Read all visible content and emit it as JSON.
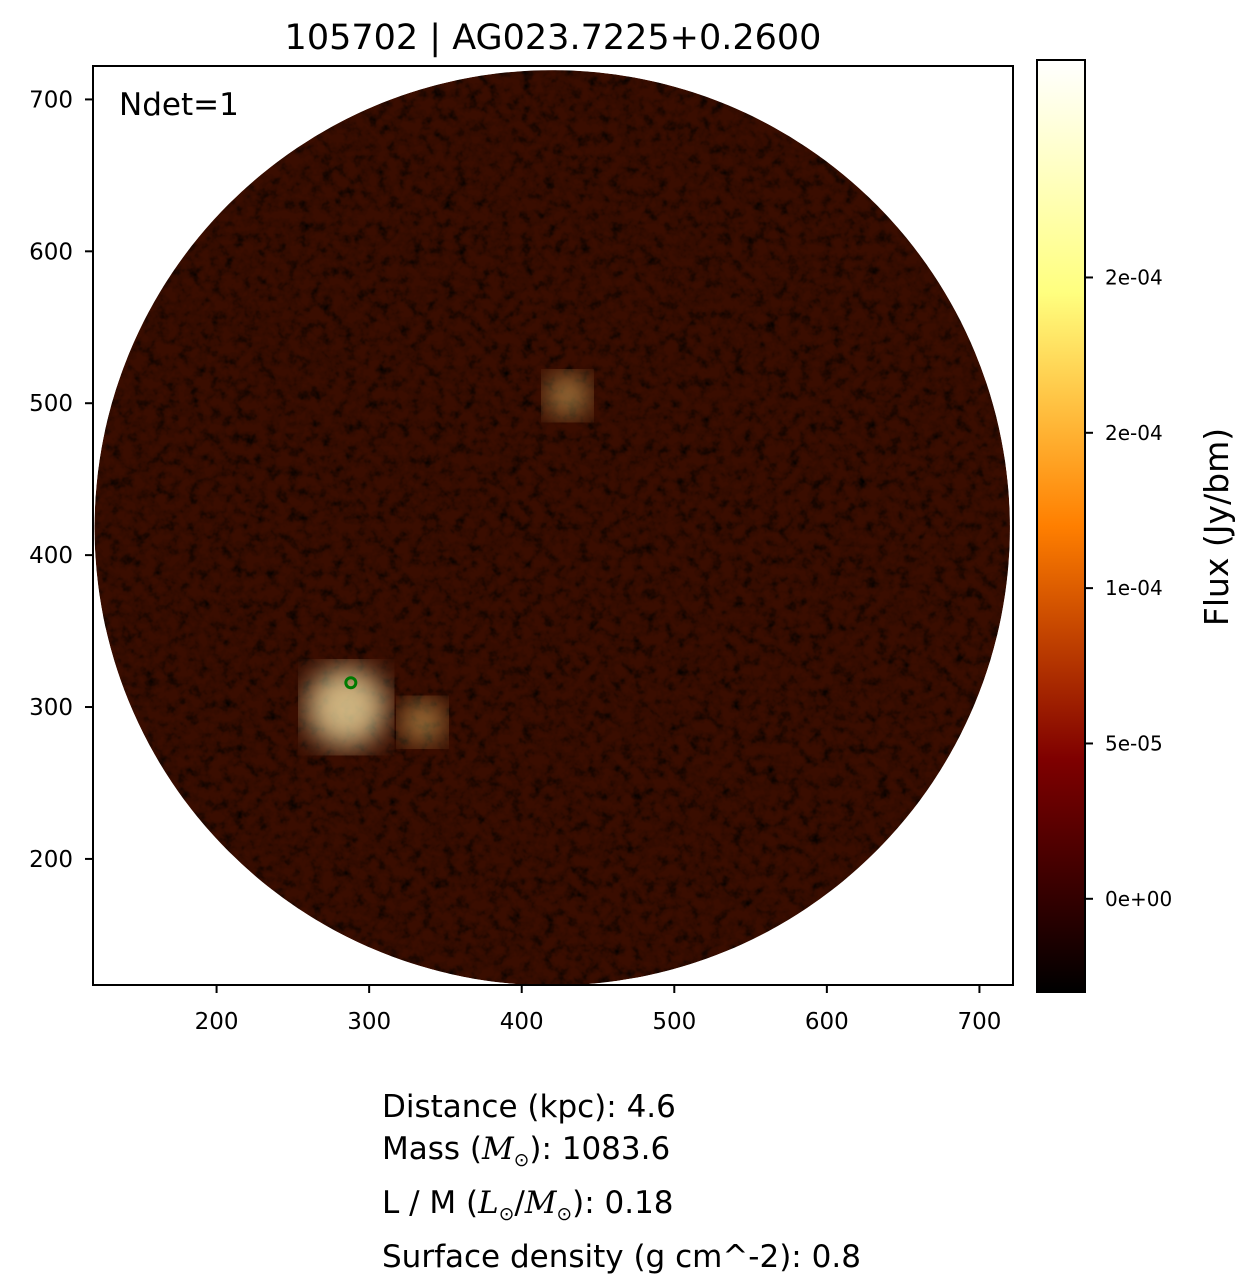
{
  "chart_data": {
    "type": "heatmap",
    "title": "105702 | AG023.7225+0.2600",
    "annotation": "Ndet=1",
    "xlabel": "",
    "ylabel": "",
    "xlim": [
      119,
      722
    ],
    "ylim": [
      117,
      722
    ],
    "x_ticks": [
      200,
      300,
      400,
      500,
      600,
      700
    ],
    "y_ticks": [
      200,
      300,
      400,
      500,
      600,
      700
    ],
    "x_tick_labels": [
      "200",
      "300",
      "400",
      "500",
      "600",
      "700"
    ],
    "y_tick_labels": [
      "200",
      "300",
      "400",
      "500",
      "600",
      "700"
    ],
    "field": {
      "shape": "circle",
      "center": [
        420,
        418
      ],
      "radius": 300,
      "outside_color": "#ffffff"
    },
    "detection_marker": {
      "x": 288,
      "y": 316,
      "color": "#007a00",
      "style": "ring"
    },
    "bright_regions": [
      {
        "x": 285,
        "y": 300,
        "note": "bright emission"
      },
      {
        "x": 430,
        "y": 505
      },
      {
        "x": 335,
        "y": 290
      }
    ],
    "colorbar": {
      "label": "Flux (Jy/bm)",
      "colormap": "afmhot",
      "range": [
        -3e-05,
        0.00027
      ],
      "ticks": [
        0.0,
        5e-05,
        0.0001,
        0.00015,
        0.0002
      ],
      "tick_labels": [
        "0e+00",
        "5e-05",
        "1e-04",
        "2e-04",
        "2e-04"
      ]
    }
  },
  "info": {
    "distance": "Distance (kpc): 4.6",
    "mass_prefix": "Mass (",
    "mass_symbol": "M",
    "mass_suffix": "): 1083.6",
    "lm_prefix": "L / M (",
    "lm_l": "L",
    "lm_sep": "/",
    "lm_m": "M",
    "lm_suffix": "): 0.18",
    "surface_density": "Surface density (g cm^-2): 0.8",
    "sun_symbol": "⊙"
  }
}
